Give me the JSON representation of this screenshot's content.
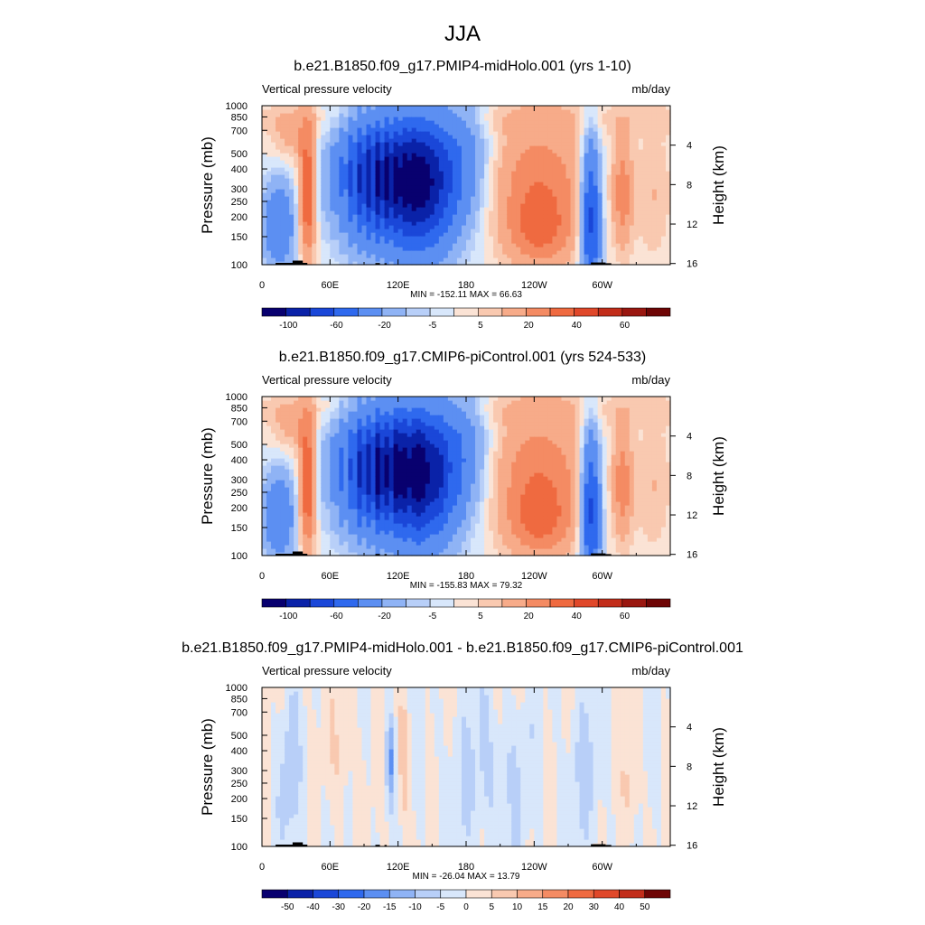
{
  "figure": {
    "title": "JJA"
  },
  "chart_data": [
    {
      "type": "heatmap",
      "title": "b.e21.B1850.f09_g17.PMIP4-midHolo.001 (yrs 1-10)",
      "variable": "Vertical pressure velocity",
      "units": "mb/day",
      "ylabel": "Pressure (mb)",
      "ylabel_right": "Height (km)",
      "xticks": [
        "0",
        "60E",
        "120E",
        "180",
        "120W",
        "60W"
      ],
      "yticks": [
        "100",
        "150",
        "200",
        "250",
        "300",
        "400",
        "500",
        "700",
        "850",
        "1000"
      ],
      "yticks_right": [
        "4",
        "8",
        "12",
        "16"
      ],
      "xlim": [
        0,
        360
      ],
      "ylim": [
        1000,
        100
      ],
      "y_scale": "log",
      "stats": "MIN = -152.11  MAX =  66.63",
      "min": -152.11,
      "max": 66.63,
      "colorbar_labels": [
        "-100",
        "-60",
        "-20",
        "-5",
        "5",
        "20",
        "40",
        "60"
      ],
      "colorbar_colors": [
        "#08006f",
        "#0a22a8",
        "#1a47d8",
        "#2f69ee",
        "#5c8ff2",
        "#8fb3f5",
        "#b8cff8",
        "#d8e7fb",
        "#fbe3d5",
        "#f9c9b0",
        "#f7ab89",
        "#f48b63",
        "#ef6a40",
        "#e0482a",
        "#c22d1a",
        "#9a1710",
        "#6e0505"
      ]
    },
    {
      "type": "heatmap",
      "title": "b.e21.B1850.f09_g17.CMIP6-piControl.001 (yrs 524-533)",
      "variable": "Vertical pressure velocity",
      "units": "mb/day",
      "ylabel": "Pressure (mb)",
      "ylabel_right": "Height (km)",
      "xticks": [
        "0",
        "60E",
        "120E",
        "180",
        "120W",
        "60W"
      ],
      "yticks": [
        "100",
        "150",
        "200",
        "250",
        "300",
        "400",
        "500",
        "700",
        "850",
        "1000"
      ],
      "yticks_right": [
        "4",
        "8",
        "12",
        "16"
      ],
      "xlim": [
        0,
        360
      ],
      "ylim": [
        1000,
        100
      ],
      "y_scale": "log",
      "stats": "MIN = -155.83  MAX =  79.32",
      "min": -155.83,
      "max": 79.32,
      "colorbar_labels": [
        "-100",
        "-60",
        "-20",
        "-5",
        "5",
        "20",
        "40",
        "60"
      ],
      "colorbar_colors": [
        "#08006f",
        "#0a22a8",
        "#1a47d8",
        "#2f69ee",
        "#5c8ff2",
        "#8fb3f5",
        "#b8cff8",
        "#d8e7fb",
        "#fbe3d5",
        "#f9c9b0",
        "#f7ab89",
        "#f48b63",
        "#ef6a40",
        "#e0482a",
        "#c22d1a",
        "#9a1710",
        "#6e0505"
      ]
    },
    {
      "type": "heatmap",
      "title": "b.e21.B1850.f09_g17.PMIP4-midHolo.001 - b.e21.B1850.f09_g17.CMIP6-piControl.001",
      "variable": "Vertical pressure velocity",
      "units": "mb/day",
      "ylabel": "Pressure (mb)",
      "ylabel_right": "Height (km)",
      "xticks": [
        "0",
        "60E",
        "120E",
        "180",
        "120W",
        "60W"
      ],
      "yticks": [
        "100",
        "150",
        "200",
        "250",
        "300",
        "400",
        "500",
        "700",
        "850",
        "1000"
      ],
      "yticks_right": [
        "4",
        "8",
        "12",
        "16"
      ],
      "xlim": [
        0,
        360
      ],
      "ylim": [
        1000,
        100
      ],
      "y_scale": "log",
      "stats": "MIN = -26.04  MAX =  13.79",
      "min": -26.04,
      "max": 13.79,
      "colorbar_labels": [
        "-50",
        "-40",
        "-30",
        "-20",
        "-15",
        "-10",
        "-5",
        "0",
        "5",
        "10",
        "15",
        "20",
        "30",
        "40",
        "50"
      ],
      "colorbar_colors": [
        "#08006f",
        "#0a22a8",
        "#1a47d8",
        "#2f69ee",
        "#5c8ff2",
        "#8fb3f5",
        "#b8cff8",
        "#d8e7fb",
        "#fbe3d5",
        "#f9c9b0",
        "#f7ab89",
        "#f48b63",
        "#ef6a40",
        "#e0482a",
        "#c22d1a",
        "#6e0505"
      ]
    }
  ]
}
